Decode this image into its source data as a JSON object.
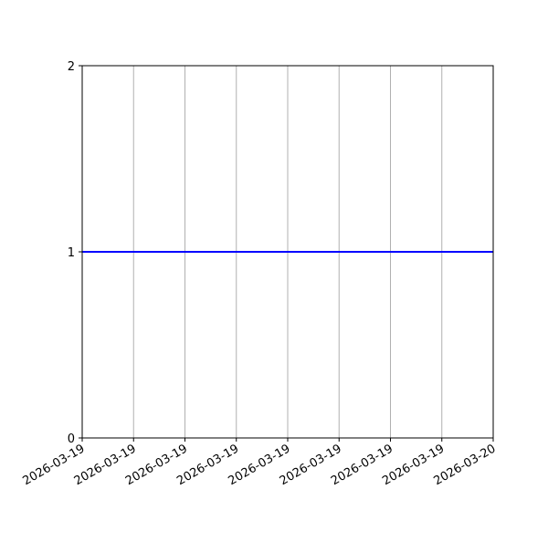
{
  "chart_data": {
    "type": "line",
    "title": "",
    "xlabel": "",
    "ylabel": "",
    "x_tick_labels": [
      "2026-03-19",
      "2026-03-19",
      "2026-03-19",
      "2026-03-19",
      "2026-03-19",
      "2026-03-19",
      "2026-03-19",
      "2026-03-19",
      "2026-03-20"
    ],
    "y_ticks": [
      0,
      1,
      2
    ],
    "ylim": [
      0,
      2
    ],
    "grid": "vertical (x-axis only)",
    "series": [
      {
        "color": "#0000ff",
        "x": [
          "2026-03-19",
          "2026-03-20"
        ],
        "y": [
          1,
          1
        ]
      }
    ],
    "colors": {
      "grid": "#b0b0b0",
      "axes": "#000000"
    }
  }
}
